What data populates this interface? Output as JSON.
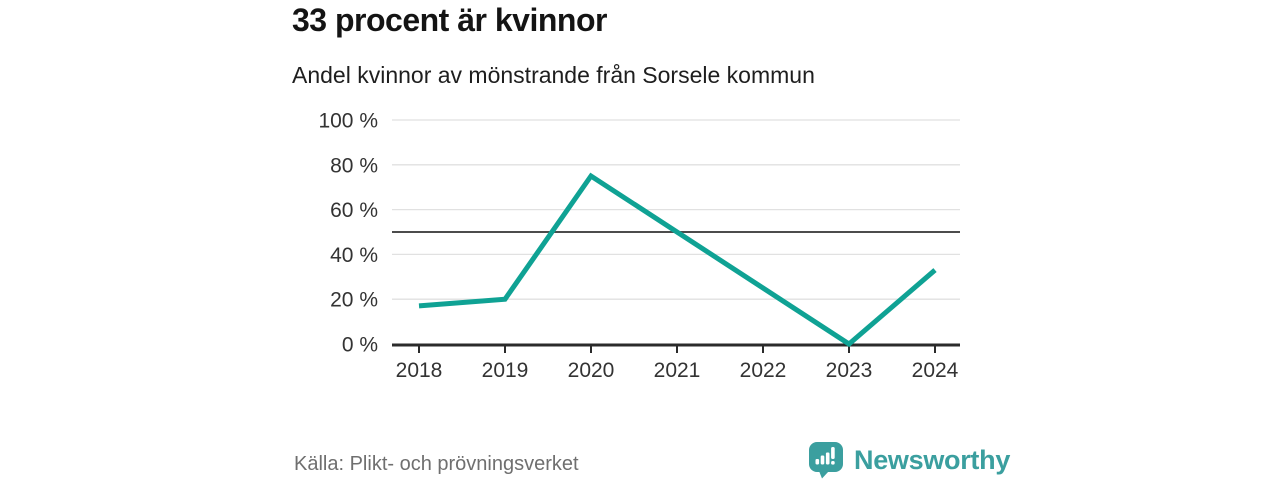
{
  "header": {
    "title": "33 procent är kvinnor",
    "subtitle": "Andel kvinnor av mönstrande från Sorsele kommun"
  },
  "chart_data": {
    "type": "line",
    "title": "33 procent är kvinnor",
    "subtitle": "Andel kvinnor av mönstrande från Sorsele kommun",
    "x": [
      "2018",
      "2019",
      "2020",
      "2021",
      "2022",
      "2023",
      "2024"
    ],
    "series": [
      {
        "name": "Andel kvinnor av mönstrande",
        "values": [
          17,
          20,
          75,
          50,
          25,
          0,
          33
        ]
      }
    ],
    "unit": "%",
    "ylim": [
      0,
      100
    ],
    "yticks": [
      0,
      20,
      40,
      60,
      80,
      100
    ],
    "ytick_labels": [
      "0 %",
      "20 %",
      "40 %",
      "60 %",
      "80 %",
      "100 %"
    ],
    "reference_line": 50,
    "grid": true,
    "legend": "none",
    "xlabel": "",
    "ylabel": ""
  },
  "footer": {
    "source": "Källa: Plikt- och prövningsverket",
    "brand": "Newsworthy"
  },
  "icons": {
    "logo": "newsworthy-speech-bubble-bar-chart-icon"
  },
  "colors": {
    "line": "#0fa294",
    "brand": "#3b9f9f",
    "grid": "#e1e1e1",
    "reference": "#4c4c4c",
    "axis": "#2b2b2b",
    "tick_text": "#333333",
    "title_text": "#141414",
    "muted_text": "#6f6f6f",
    "background": "#ffffff"
  }
}
